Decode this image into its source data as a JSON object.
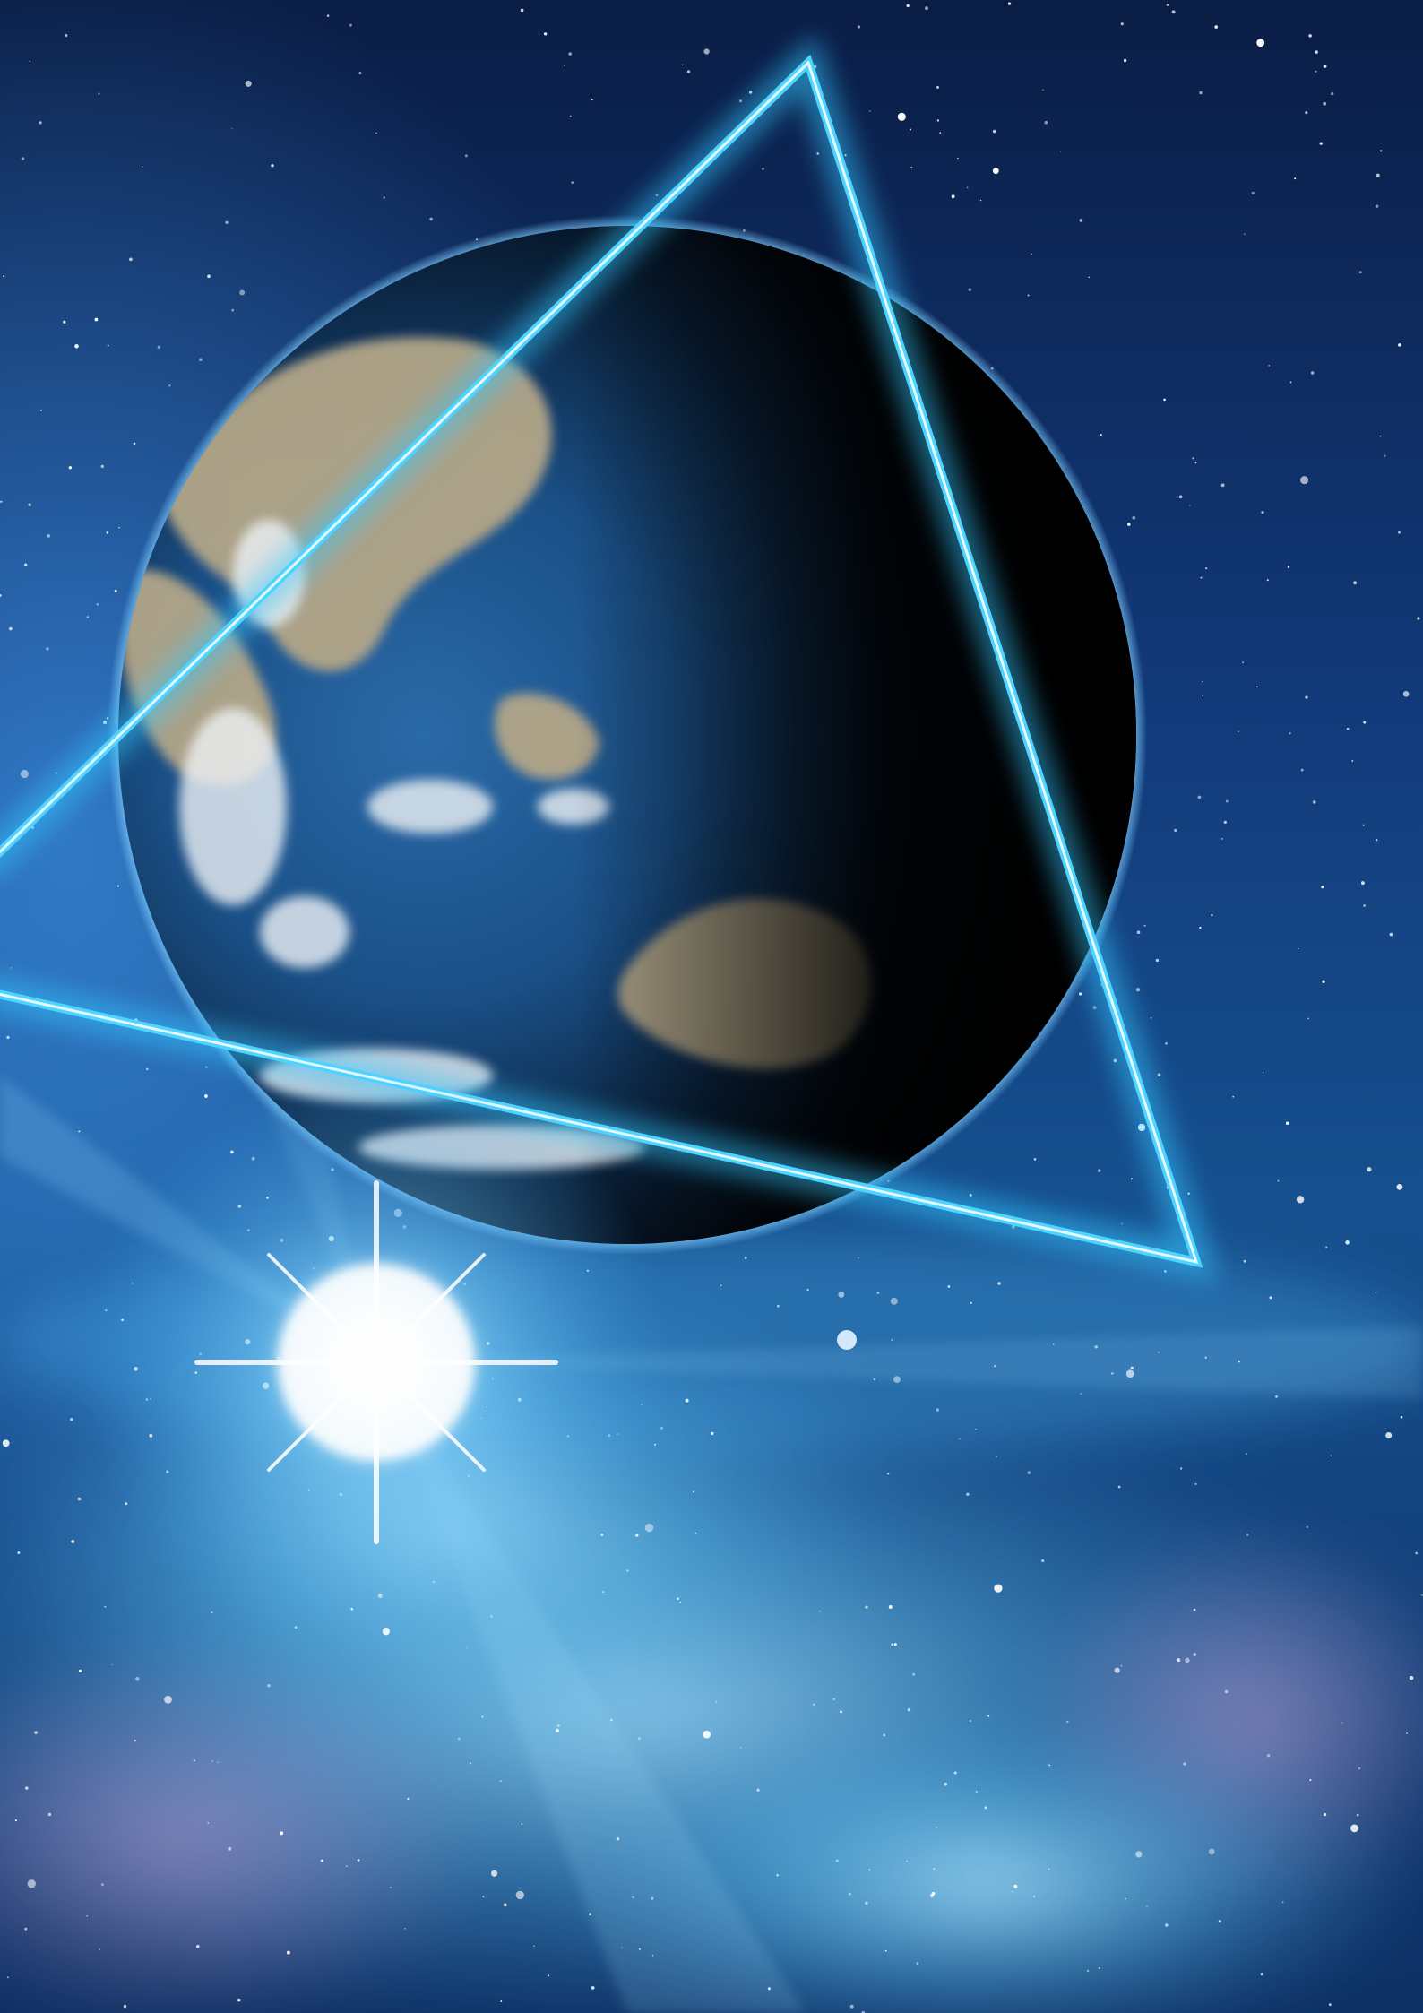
{
  "colors": {
    "space_deep": "#050d24",
    "space_mid": "#0c2a5c",
    "space_light": "#1a5fa8",
    "nebula_glow": "#5fc4f0",
    "nebula_pink": "#b89ad0",
    "triangle_neon": "#36c8ff",
    "triangle_core": "#d8f6ff",
    "earth_ocean": "#1b4f86",
    "earth_land": "#b8a98a",
    "earth_cloud": "#e9eef2",
    "earth_shadow": "#020408",
    "flare_core": "#ffffff"
  },
  "elements": {
    "background": "starfield-background",
    "nebula": "nebula-cloud",
    "earth": "earth-globe",
    "triangle": "neon-triangle",
    "flare": "light-flare"
  }
}
